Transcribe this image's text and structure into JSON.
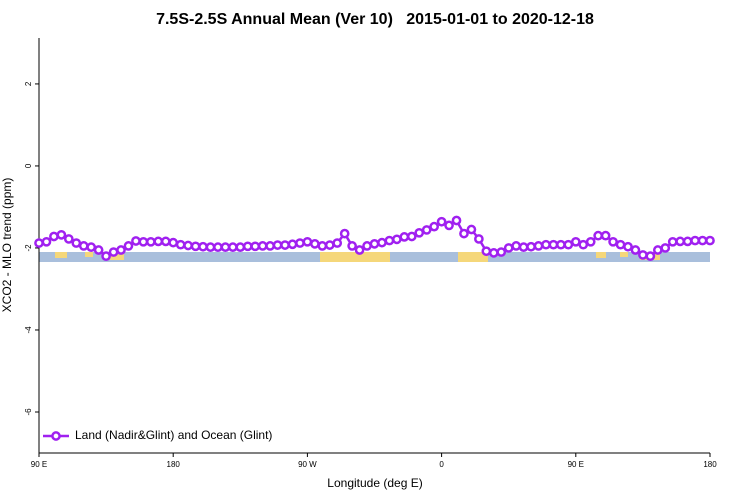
{
  "chart_data": {
    "type": "line",
    "title": "7.5S-2.5S Annual Mean (Ver 10)   2015-01-01 to 2020-12-18",
    "x_label": "Longitude (deg E)",
    "y_label": "XCO2 - MLO trend (ppm)",
    "x": [
      90,
      95,
      100,
      105,
      110,
      115,
      120,
      125,
      130,
      135,
      140,
      145,
      150,
      155,
      160,
      165,
      170,
      175,
      180,
      185,
      190,
      195,
      200,
      205,
      210,
      215,
      220,
      225,
      230,
      235,
      240,
      245,
      250,
      255,
      260,
      265,
      270,
      275,
      280,
      285,
      290,
      295,
      300,
      305,
      310,
      315,
      320,
      325,
      330,
      335,
      340,
      345,
      350,
      355,
      360,
      365,
      370,
      375,
      380,
      385,
      390,
      395,
      400,
      405,
      410,
      415,
      420,
      425,
      430,
      435,
      440,
      445,
      450,
      455,
      460,
      465,
      470,
      475,
      480,
      485,
      490,
      495,
      500,
      505,
      510,
      515,
      520,
      525,
      530,
      535,
      540
    ],
    "series": [
      {
        "name": "Land (Nadir&Glint) and Ocean (Glint)",
        "color": "#a020f0",
        "values": [
          -1.88,
          -1.85,
          -1.72,
          -1.68,
          -1.78,
          -1.88,
          -1.95,
          -1.98,
          -2.05,
          -2.2,
          -2.1,
          -2.05,
          -1.95,
          -1.83,
          -1.85,
          -1.85,
          -1.84,
          -1.84,
          -1.87,
          -1.92,
          -1.94,
          -1.96,
          -1.97,
          -1.98,
          -1.98,
          -1.98,
          -1.98,
          -1.98,
          -1.96,
          -1.96,
          -1.95,
          -1.95,
          -1.93,
          -1.93,
          -1.91,
          -1.88,
          -1.85,
          -1.9,
          -1.95,
          -1.93,
          -1.88,
          -1.65,
          -1.95,
          -2.05,
          -1.95,
          -1.9,
          -1.87,
          -1.82,
          -1.79,
          -1.73,
          -1.72,
          -1.63,
          -1.56,
          -1.48,
          -1.36,
          -1.45,
          -1.33,
          -1.65,
          -1.55,
          -1.78,
          -2.08,
          -2.12,
          -2.1,
          -2.0,
          -1.95,
          -1.98,
          -1.97,
          -1.95,
          -1.92,
          -1.92,
          -1.92,
          -1.92,
          -1.85,
          -1.92,
          -1.85,
          -1.7,
          -1.7,
          -1.85,
          -1.92,
          -1.97,
          -2.05,
          -2.17,
          -2.2,
          -2.05,
          -2.0,
          -1.85,
          -1.84,
          -1.84,
          -1.82,
          -1.82,
          -1.82
        ]
      }
    ],
    "xlim": [
      90,
      540
    ],
    "xticks": [
      {
        "value": 90,
        "label": "90 E"
      },
      180,
      {
        "value": 270,
        "label": "90 W"
      },
      {
        "value": 360,
        "label": "0"
      },
      {
        "value": 450,
        "label": "90 E"
      },
      {
        "value": 540,
        "label": "180"
      }
    ],
    "ylim": [
      -7,
      3.12
    ],
    "yticks": [
      -6,
      -4,
      -2,
      0,
      2
    ],
    "legend": "bottom-left"
  }
}
